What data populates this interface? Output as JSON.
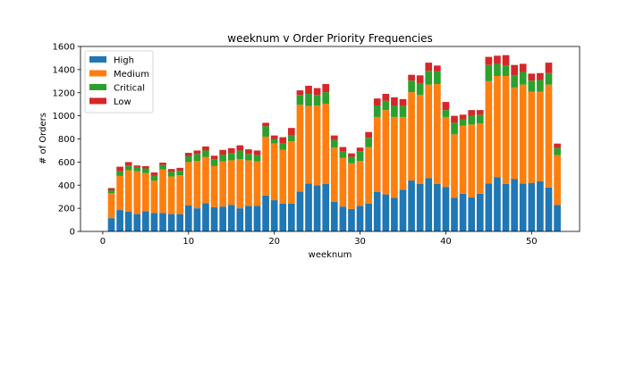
{
  "chart_data": {
    "type": "bar",
    "stacked": true,
    "title": "weeknum v Order Priority Frequencies",
    "xlabel": "weeknum",
    "ylabel": "# of Orders",
    "xlim": [
      -2.6,
      55.6
    ],
    "ylim": [
      0,
      1600
    ],
    "xticks": [
      "0",
      "10",
      "20",
      "30",
      "40",
      "50"
    ],
    "yticks": [
      "0",
      "200",
      "400",
      "600",
      "800",
      "1000",
      "1200",
      "1400",
      "1600"
    ],
    "legend_position": "upper-left",
    "grid": false,
    "x": [
      1,
      2,
      3,
      4,
      5,
      6,
      7,
      8,
      9,
      10,
      11,
      12,
      13,
      14,
      15,
      16,
      17,
      18,
      19,
      20,
      21,
      22,
      23,
      24,
      25,
      26,
      27,
      28,
      29,
      30,
      31,
      32,
      33,
      34,
      35,
      36,
      37,
      38,
      39,
      40,
      41,
      42,
      43,
      44,
      45,
      46,
      47,
      48,
      49,
      50,
      51,
      52,
      53
    ],
    "series": [
      {
        "name": "High",
        "color": "#1f77b4",
        "values": [
          115,
          185,
          170,
          150,
          175,
          160,
          160,
          150,
          150,
          225,
          200,
          245,
          210,
          215,
          230,
          200,
          220,
          220,
          310,
          270,
          240,
          240,
          345,
          415,
          400,
          410,
          255,
          215,
          195,
          220,
          240,
          340,
          320,
          290,
          360,
          440,
          410,
          460,
          410,
          385,
          290,
          325,
          295,
          325,
          415,
          470,
          410,
          455,
          415,
          420,
          435,
          380,
          230
        ]
      },
      {
        "name": "Medium",
        "color": "#ff7f0e",
        "values": [
          215,
          295,
          360,
          370,
          330,
          280,
          375,
          325,
          335,
          375,
          410,
          400,
          355,
          390,
          385,
          425,
          395,
          385,
          510,
          490,
          465,
          540,
          750,
          670,
          690,
          695,
          470,
          420,
          395,
          390,
          490,
          650,
          730,
          700,
          630,
          765,
          770,
          810,
          865,
          605,
          550,
          590,
          630,
          610,
          885,
          875,
          935,
          790,
          855,
          790,
          775,
          890,
          430
        ]
      },
      {
        "name": "Critical",
        "color": "#2ca02c",
        "values": [
          25,
          40,
          40,
          30,
          40,
          40,
          40,
          40,
          40,
          50,
          60,
          55,
          60,
          60,
          60,
          75,
          55,
          55,
          90,
          40,
          60,
          55,
          85,
          105,
          90,
          100,
          65,
          55,
          55,
          85,
          80,
          100,
          80,
          100,
          95,
          100,
          100,
          120,
          110,
          60,
          100,
          55,
          75,
          75,
          140,
          105,
          90,
          105,
          110,
          95,
          100,
          100,
          60
        ]
      },
      {
        "name": "Low",
        "color": "#d62728",
        "values": [
          20,
          40,
          30,
          20,
          20,
          30,
          20,
          25,
          25,
          30,
          30,
          35,
          30,
          40,
          45,
          45,
          40,
          40,
          30,
          30,
          50,
          60,
          40,
          70,
          60,
          70,
          40,
          40,
          30,
          30,
          50,
          60,
          60,
          70,
          60,
          50,
          70,
          70,
          50,
          70,
          60,
          40,
          50,
          40,
          70,
          70,
          90,
          90,
          70,
          60,
          60,
          90,
          40
        ]
      }
    ]
  }
}
